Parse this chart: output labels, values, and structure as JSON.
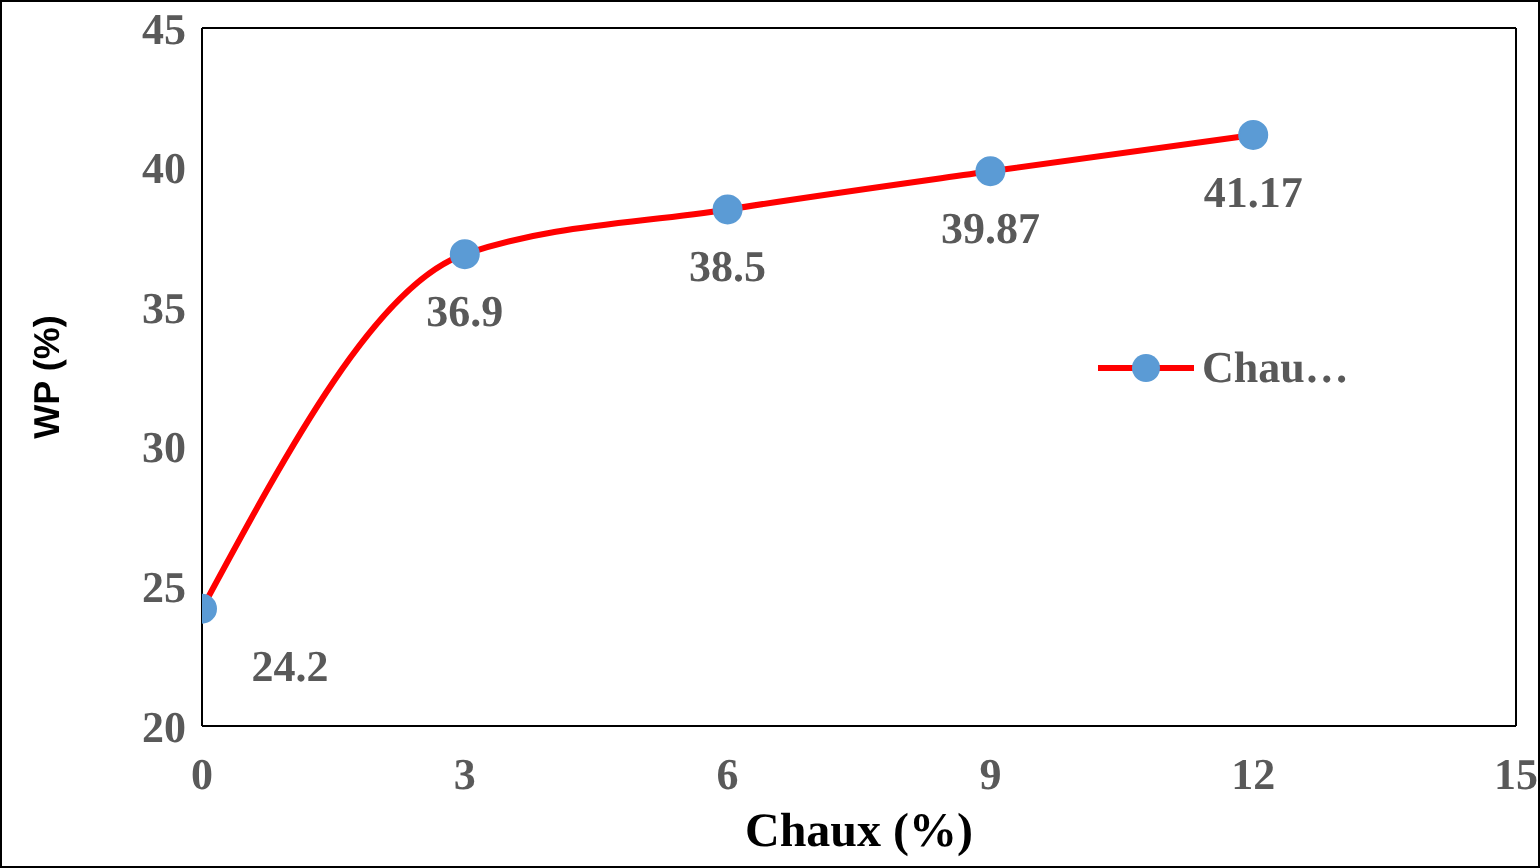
{
  "chart_data": {
    "type": "line",
    "xlabel": "Chaux (%)",
    "ylabel": "WP (%)",
    "x": [
      0,
      3,
      6,
      9,
      12
    ],
    "series": [
      {
        "name": "Chau…",
        "color": "#ff0000",
        "colors": [
          "#5b9bd5",
          "#5b9bd5",
          "#5b9bd5",
          "#5b9bd5",
          "#5b9bd5"
        ],
        "values": [
          24.2,
          36.9,
          38.5,
          39.87,
          41.17
        ]
      }
    ],
    "xlim": [
      0,
      15
    ],
    "xticks": [
      0,
      3,
      6,
      9,
      12,
      15
    ],
    "ylim": [
      20,
      45
    ],
    "yticks": [
      20,
      25,
      30,
      35,
      40,
      45
    ],
    "data_labels": true,
    "marker": "circle",
    "line_style": "solid",
    "legend": "right",
    "grid": false
  }
}
